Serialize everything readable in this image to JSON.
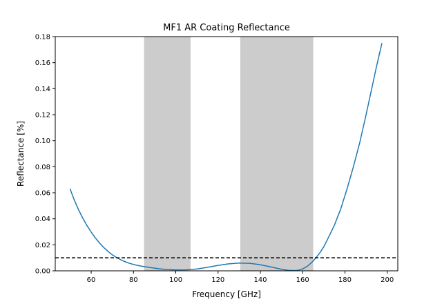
{
  "chart_data": {
    "type": "line",
    "title": "MF1 AR Coating Reflectance",
    "xlabel": "Frequency [GHz]",
    "ylabel": "Reflectance [%]",
    "xlim": [
      43,
      205
    ],
    "ylim": [
      0,
      0.18
    ],
    "xticks": [
      60,
      80,
      100,
      120,
      140,
      160,
      180,
      200
    ],
    "yticks": [
      0.0,
      0.02,
      0.04,
      0.06,
      0.08,
      0.1,
      0.12,
      0.14,
      0.16,
      0.18
    ],
    "ytick_labels": [
      "0.00",
      "0.02",
      "0.04",
      "0.06",
      "0.08",
      "0.10",
      "0.12",
      "0.14",
      "0.16",
      "0.18"
    ],
    "grid": false,
    "bands": [
      {
        "x0": 85,
        "x1": 107,
        "color": "#999999"
      },
      {
        "x0": 130.5,
        "x1": 165,
        "color": "#999999"
      }
    ],
    "reference_line": {
      "y": 0.01,
      "style": "dashed",
      "color": "#000000"
    },
    "series": [
      {
        "color": "#1f77b4",
        "x": [
          50,
          52,
          54,
          56,
          58,
          60,
          62,
          64,
          66,
          68,
          70,
          72,
          75,
          78,
          81,
          84,
          88,
          92,
          96,
          100,
          105,
          110,
          115,
          120,
          125,
          130,
          135,
          140,
          145,
          150,
          153,
          156,
          158,
          160,
          162,
          164,
          166,
          168,
          170,
          172,
          175,
          178,
          181,
          184,
          187,
          190,
          193,
          195,
          197.5
        ],
        "y": [
          0.063,
          0.0545,
          0.047,
          0.0405,
          0.0348,
          0.0298,
          0.0252,
          0.0213,
          0.0178,
          0.0149,
          0.0123,
          0.0102,
          0.0077,
          0.0058,
          0.0045,
          0.0035,
          0.0025,
          0.0016,
          0.001,
          0.0007,
          0.0008,
          0.0014,
          0.0027,
          0.0042,
          0.0054,
          0.006,
          0.0058,
          0.0047,
          0.003,
          0.0012,
          0.0004,
          0.0002,
          0.0005,
          0.0015,
          0.0033,
          0.006,
          0.0095,
          0.0135,
          0.0185,
          0.025,
          0.035,
          0.0475,
          0.063,
          0.08,
          0.0985,
          0.12,
          0.1425,
          0.1575,
          0.175
        ]
      }
    ]
  }
}
